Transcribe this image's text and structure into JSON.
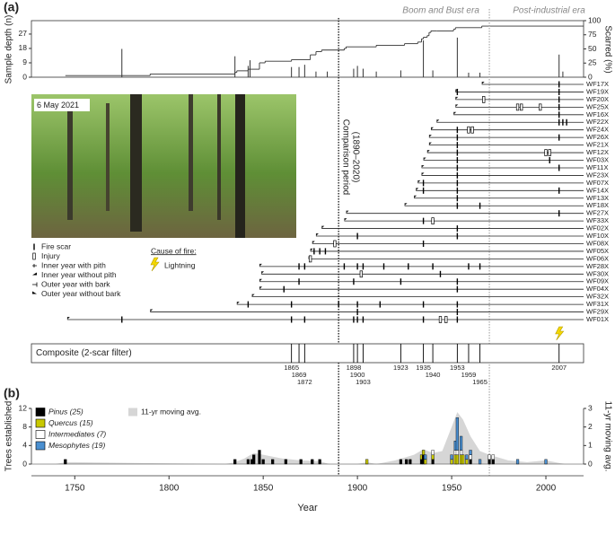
{
  "panel_labels": [
    "(a)",
    "(b)"
  ],
  "chart_data": [
    {
      "type": "depth",
      "ylabel": "Sample depth (n)",
      "y2label": "Scarred (%)",
      "ylim": [
        0,
        35.4
      ],
      "yticks": [
        0,
        9,
        18,
        27
      ],
      "y2lim": [
        0,
        100
      ],
      "y2ticks": [
        0,
        25,
        50,
        75,
        100
      ],
      "line_color": "#333333",
      "bar_color": "#333333",
      "x": [
        1745,
        1790,
        1835,
        1836,
        1842,
        1848,
        1851,
        1865,
        1875,
        1878,
        1881,
        1893,
        1894,
        1910,
        1925,
        1932,
        1934,
        1935,
        1937,
        1938,
        1939,
        1942,
        1951,
        1952,
        1966,
        2020
      ],
      "sample_depth": [
        1,
        2,
        3,
        4,
        5,
        9,
        10,
        11,
        14,
        16,
        17,
        18,
        19,
        20,
        21,
        22,
        24,
        25,
        26,
        28,
        29,
        29,
        30,
        31,
        32,
        32
      ],
      "scar_years": [
        1775,
        1835,
        1842,
        1843,
        1865,
        1869,
        1872,
        1878,
        1884,
        1898,
        1900,
        1903,
        1910,
        1923,
        1935,
        1940,
        1953,
        1959,
        1965,
        2007,
        2009
      ],
      "scarred_percent": [
        50,
        37,
        20,
        30,
        18,
        18,
        22,
        10,
        10,
        15,
        20,
        15,
        10,
        12,
        65,
        12,
        70,
        8,
        8,
        40,
        10
      ],
      "eras": [
        "Boom and Bust era",
        "Post-industrial era"
      ],
      "era_starts": [
        1890,
        1970
      ]
    },
    {
      "type": "fire_history",
      "photo_caption": "6 May 2021",
      "comparison_label": [
        "Comparison period",
        "(1890–2020)"
      ],
      "comparison_start": 1890,
      "legend": [
        "Fire scar",
        "Injury",
        "Inner year with pith",
        "Inner year without pith",
        "Outer year with bark",
        "Outer year without bark"
      ],
      "cause_title": "Cause of fire:",
      "cause": "Lightning",
      "trees": [
        {
          "name": "WF17X",
          "start": 1966,
          "end": 2020,
          "scars": [
            2007
          ]
        },
        {
          "name": "WF19X",
          "start": 1952,
          "end": 2020,
          "scars": [
            1953,
            2007
          ]
        },
        {
          "name": "WF20X",
          "start": 1952,
          "end": 2020,
          "scars": [
            2007
          ],
          "injuries": [
            1967
          ]
        },
        {
          "name": "WF25X",
          "start": 1952,
          "end": 2020,
          "scars": [
            2007
          ],
          "injuries": [
            1985,
            1987,
            1997
          ]
        },
        {
          "name": "WF16X",
          "start": 1951,
          "end": 2020,
          "scars": [
            2007
          ]
        },
        {
          "name": "WF22X",
          "start": 1942,
          "end": 2020,
          "scars": [
            2007,
            2009,
            2011
          ]
        },
        {
          "name": "WF24X",
          "start": 1939,
          "end": 2020,
          "scars": [
            1953
          ],
          "injuries": [
            1959,
            1961
          ]
        },
        {
          "name": "WF26X",
          "start": 1938,
          "end": 2020,
          "scars": [
            1953,
            2007
          ]
        },
        {
          "name": "WF21X",
          "start": 1938,
          "end": 2020,
          "scars": [
            1953
          ]
        },
        {
          "name": "WF12X",
          "start": 1937,
          "end": 2020,
          "scars": [
            1953
          ],
          "injuries": [
            2000,
            2002
          ]
        },
        {
          "name": "WF03X",
          "start": 1935,
          "end": 2020,
          "scars": [
            1953,
            2002
          ]
        },
        {
          "name": "WF11X",
          "start": 1934,
          "end": 2020,
          "scars": [
            1953,
            2007
          ]
        },
        {
          "name": "WF23X",
          "start": 1934,
          "end": 2020,
          "scars": [
            1953
          ]
        },
        {
          "name": "WF07X",
          "start": 1932,
          "end": 2020,
          "scars": [
            1935,
            1953
          ]
        },
        {
          "name": "WF14X",
          "start": 1931,
          "end": 2020,
          "scars": [
            1935,
            1953,
            2007
          ]
        },
        {
          "name": "WF13X",
          "start": 1930,
          "end": 2020,
          "scars": [
            1953
          ]
        },
        {
          "name": "WF18X",
          "start": 1925,
          "end": 2020,
          "scars": [
            1953,
            1965
          ]
        },
        {
          "name": "WF27X",
          "start": 1894,
          "end": 2020,
          "scars": [
            2007
          ]
        },
        {
          "name": "WF33X",
          "start": 1893,
          "end": 2020,
          "scars": [
            1935
          ],
          "injuries": [
            1940
          ]
        },
        {
          "name": "WF02X",
          "start": 1881,
          "end": 2020,
          "scars": [
            1953
          ]
        },
        {
          "name": "WF10X",
          "start": 1878,
          "end": 2020,
          "scars": [
            1900,
            1953
          ]
        },
        {
          "name": "WF08X",
          "start": 1876,
          "end": 2020,
          "scars": [
            1935
          ],
          "injuries": [
            1888
          ]
        },
        {
          "name": "WF05X",
          "start": 1875,
          "end": 2020,
          "scars": [
            1877,
            1880,
            1883
          ]
        },
        {
          "name": "WF06X",
          "start": 1874,
          "end": 2020,
          "scars": [],
          "injuries": [
            1875
          ]
        },
        {
          "name": "WF28X",
          "start": 1848,
          "end": 2020,
          "scars": [
            1869,
            1872,
            1893,
            1900,
            1903,
            1914,
            1927,
            1940,
            1959,
            1965
          ]
        },
        {
          "name": "WF30X",
          "start": 1849,
          "end": 2020,
          "scars": [
            1944
          ],
          "injuries": [
            1902
          ]
        },
        {
          "name": "WF09X",
          "start": 1848,
          "end": 2020,
          "scars": [
            1869,
            1898,
            1923,
            1953
          ]
        },
        {
          "name": "WF04X",
          "start": 1848,
          "end": 2020,
          "scars": [
            1861,
            1953
          ]
        },
        {
          "name": "WF32X",
          "start": 1844,
          "end": 2020,
          "scars": []
        },
        {
          "name": "WF31X",
          "start": 1836,
          "end": 2020,
          "scars": [
            1842,
            1865,
            1890,
            1900,
            1912,
            1935,
            1953
          ]
        },
        {
          "name": "WF29X",
          "start": 1790,
          "end": 2020,
          "scars": [
            1900,
            1953
          ]
        },
        {
          "name": "WF01X",
          "start": 1746,
          "end": 2020,
          "scars": [
            1775,
            1865,
            1872,
            1898,
            1900,
            1903,
            1935,
            1953
          ],
          "injuries": [
            1944,
            1947
          ]
        }
      ],
      "composite_label": "Composite (2-scar filter)",
      "composite_years": [
        1865,
        1869,
        1872,
        1898,
        1900,
        1903,
        1923,
        1935,
        1940,
        1953,
        1959,
        1965,
        2007
      ],
      "lightning_year": 2007
    },
    {
      "type": "bar",
      "stacked": true,
      "xlabel": "Year",
      "ylabel": "Trees established",
      "y2label": "11-yr moving avg.",
      "xlim": [
        1727,
        2020
      ],
      "xticks": [
        1750,
        1800,
        1850,
        1900,
        1950,
        2000
      ],
      "ylim": [
        0,
        12
      ],
      "yticks": [
        0,
        4,
        8,
        12
      ],
      "y2lim": [
        0,
        3
      ],
      "y2ticks": [
        0,
        1,
        2,
        3
      ],
      "x": [
        1745,
        1835,
        1842,
        1844,
        1845,
        1848,
        1850,
        1855,
        1862,
        1870,
        1876,
        1880,
        1905,
        1923,
        1926,
        1928,
        1934,
        1935,
        1936,
        1940,
        1950,
        1952,
        1953,
        1955,
        1956,
        1958,
        1960,
        1965,
        1970,
        1972,
        1985,
        2000
      ],
      "series": [
        {
          "name": "Pinus (25)",
          "color": "#000000",
          "values": [
            1,
            1,
            1,
            1,
            2,
            3,
            1,
            1,
            1,
            1,
            1,
            1,
            0,
            1,
            1,
            1,
            1,
            2,
            0,
            1,
            0,
            0,
            0,
            0,
            0,
            0,
            1,
            0,
            1,
            1,
            0,
            0
          ]
        },
        {
          "name": "Quercus (15)",
          "color": "#c8c800",
          "values": [
            0,
            0,
            0,
            0,
            0,
            0,
            0,
            0,
            0,
            0,
            0,
            0,
            1,
            0,
            0,
            0,
            1,
            1,
            1,
            1,
            1,
            2,
            2,
            2,
            2,
            1,
            0,
            0,
            0,
            0,
            0,
            0
          ]
        },
        {
          "name": "Intermediates (7)",
          "color": "#ffffff",
          "values": [
            0,
            0,
            0,
            0,
            0,
            0,
            0,
            0,
            0,
            0,
            0,
            0,
            0,
            0,
            0,
            0,
            0,
            0,
            0,
            1,
            0,
            1,
            1,
            1,
            0,
            0,
            1,
            0,
            1,
            1,
            0,
            0
          ]
        },
        {
          "name": "Mesophytes (19)",
          "color": "#4a8fd0",
          "values": [
            0,
            0,
            0,
            0,
            0,
            0,
            0,
            0,
            0,
            0,
            0,
            0,
            0,
            0,
            0,
            0,
            0,
            0,
            1,
            0,
            1,
            2,
            7,
            3,
            0,
            1,
            1,
            1,
            0,
            0,
            1,
            1
          ]
        },
        {
          "name": "11-yr moving avg.",
          "color": "#d6d6d6",
          "axis": "y2",
          "x": [
            1740,
            1745,
            1750,
            1830,
            1835,
            1840,
            1845,
            1850,
            1860,
            1870,
            1880,
            1885,
            1900,
            1905,
            1910,
            1920,
            1930,
            1935,
            1940,
            1945,
            1950,
            1953,
            1956,
            1960,
            1965,
            1970,
            1980,
            1990,
            2000,
            2010
          ],
          "values": [
            0,
            0.1,
            0.1,
            0,
            0.1,
            0.3,
            0.6,
            0.5,
            0.3,
            0.2,
            0.15,
            0,
            0,
            0.1,
            0,
            0.2,
            0.5,
            0.8,
            0.6,
            0.7,
            2.0,
            2.8,
            2.4,
            1.5,
            0.7,
            0.5,
            0.2,
            0.1,
            0.2,
            0
          ]
        }
      ]
    }
  ]
}
